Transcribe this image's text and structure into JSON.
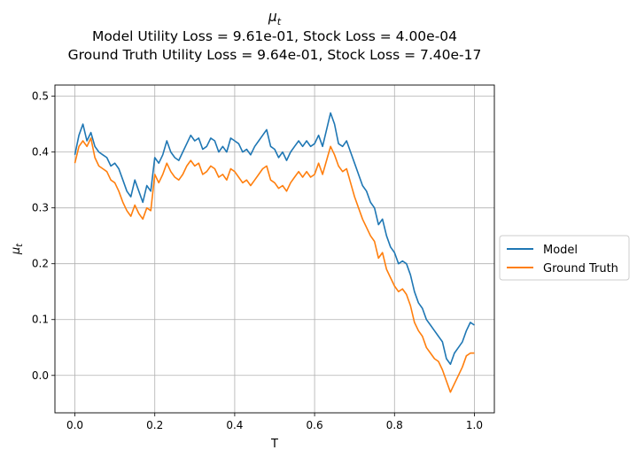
{
  "chart_data": {
    "type": "line",
    "title_symbol_base": "μ",
    "title_symbol_sub": "t",
    "title_lines": [
      "Model Utility Loss = 9.61e-01, Stock Loss = 4.00e-04",
      "Ground Truth Utility Loss = 9.64e-01, Stock Loss = 7.40e-17"
    ],
    "xlabel": "T",
    "ylabel_base": "μ",
    "ylabel_sub": "t",
    "xlim": [
      -0.05,
      1.05
    ],
    "ylim": [
      -0.067,
      0.52
    ],
    "xticks": [
      0.0,
      0.2,
      0.4,
      0.6,
      0.8,
      1.0
    ],
    "xtick_labels": [
      "0.0",
      "0.2",
      "0.4",
      "0.6",
      "0.8",
      "1.0"
    ],
    "yticks": [
      0.0,
      0.1,
      0.2,
      0.3,
      0.4,
      0.5
    ],
    "ytick_labels": [
      "0.0",
      "0.1",
      "0.2",
      "0.3",
      "0.4",
      "0.5"
    ],
    "grid": true,
    "legend_position": "outside-right",
    "series": [
      {
        "name": "Model",
        "color": "#1f77b4",
        "x": [
          0.0,
          0.01,
          0.02,
          0.03,
          0.04,
          0.05,
          0.06,
          0.07,
          0.08,
          0.09,
          0.1,
          0.11,
          0.12,
          0.13,
          0.14,
          0.15,
          0.16,
          0.17,
          0.18,
          0.19,
          0.2,
          0.21,
          0.22,
          0.23,
          0.24,
          0.25,
          0.26,
          0.27,
          0.28,
          0.29,
          0.3,
          0.31,
          0.32,
          0.33,
          0.34,
          0.35,
          0.36,
          0.37,
          0.38,
          0.39,
          0.4,
          0.41,
          0.42,
          0.43,
          0.44,
          0.45,
          0.46,
          0.47,
          0.48,
          0.49,
          0.5,
          0.51,
          0.52,
          0.53,
          0.54,
          0.55,
          0.56,
          0.57,
          0.58,
          0.59,
          0.6,
          0.61,
          0.62,
          0.63,
          0.64,
          0.65,
          0.66,
          0.67,
          0.68,
          0.69,
          0.7,
          0.71,
          0.72,
          0.73,
          0.74,
          0.75,
          0.76,
          0.77,
          0.78,
          0.79,
          0.8,
          0.81,
          0.82,
          0.83,
          0.84,
          0.85,
          0.86,
          0.87,
          0.88,
          0.89,
          0.9,
          0.91,
          0.92,
          0.93,
          0.94,
          0.95,
          0.96,
          0.97,
          0.98,
          0.99,
          1.0
        ],
        "y": [
          0.395,
          0.43,
          0.45,
          0.42,
          0.435,
          0.41,
          0.4,
          0.395,
          0.39,
          0.375,
          0.38,
          0.37,
          0.35,
          0.33,
          0.32,
          0.35,
          0.33,
          0.31,
          0.34,
          0.33,
          0.39,
          0.38,
          0.395,
          0.42,
          0.4,
          0.39,
          0.385,
          0.4,
          0.415,
          0.43,
          0.42,
          0.425,
          0.405,
          0.41,
          0.425,
          0.42,
          0.4,
          0.41,
          0.4,
          0.425,
          0.42,
          0.415,
          0.4,
          0.405,
          0.395,
          0.41,
          0.42,
          0.43,
          0.44,
          0.41,
          0.405,
          0.39,
          0.4,
          0.385,
          0.4,
          0.41,
          0.42,
          0.41,
          0.42,
          0.41,
          0.415,
          0.43,
          0.41,
          0.44,
          0.47,
          0.45,
          0.415,
          0.41,
          0.42,
          0.4,
          0.38,
          0.36,
          0.34,
          0.33,
          0.31,
          0.3,
          0.27,
          0.28,
          0.25,
          0.23,
          0.22,
          0.2,
          0.205,
          0.2,
          0.18,
          0.15,
          0.13,
          0.12,
          0.1,
          0.09,
          0.08,
          0.07,
          0.06,
          0.03,
          0.02,
          0.04,
          0.05,
          0.06,
          0.08,
          0.095,
          0.09
        ]
      },
      {
        "name": "Ground Truth",
        "color": "#ff7f0e",
        "x": [
          0.0,
          0.01,
          0.02,
          0.03,
          0.04,
          0.05,
          0.06,
          0.07,
          0.08,
          0.09,
          0.1,
          0.11,
          0.12,
          0.13,
          0.14,
          0.15,
          0.16,
          0.17,
          0.18,
          0.19,
          0.2,
          0.21,
          0.22,
          0.23,
          0.24,
          0.25,
          0.26,
          0.27,
          0.28,
          0.29,
          0.3,
          0.31,
          0.32,
          0.33,
          0.34,
          0.35,
          0.36,
          0.37,
          0.38,
          0.39,
          0.4,
          0.41,
          0.42,
          0.43,
          0.44,
          0.45,
          0.46,
          0.47,
          0.48,
          0.49,
          0.5,
          0.51,
          0.52,
          0.53,
          0.54,
          0.55,
          0.56,
          0.57,
          0.58,
          0.59,
          0.6,
          0.61,
          0.62,
          0.63,
          0.64,
          0.65,
          0.66,
          0.67,
          0.68,
          0.69,
          0.7,
          0.71,
          0.72,
          0.73,
          0.74,
          0.75,
          0.76,
          0.77,
          0.78,
          0.79,
          0.8,
          0.81,
          0.82,
          0.83,
          0.84,
          0.85,
          0.86,
          0.87,
          0.88,
          0.89,
          0.9,
          0.91,
          0.92,
          0.93,
          0.94,
          0.95,
          0.96,
          0.97,
          0.98,
          0.99,
          1.0
        ],
        "y": [
          0.38,
          0.41,
          0.42,
          0.41,
          0.425,
          0.39,
          0.375,
          0.37,
          0.365,
          0.35,
          0.345,
          0.33,
          0.31,
          0.295,
          0.285,
          0.305,
          0.29,
          0.28,
          0.3,
          0.295,
          0.36,
          0.345,
          0.36,
          0.38,
          0.365,
          0.355,
          0.35,
          0.36,
          0.375,
          0.385,
          0.375,
          0.38,
          0.36,
          0.365,
          0.375,
          0.37,
          0.355,
          0.36,
          0.35,
          0.37,
          0.365,
          0.355,
          0.345,
          0.35,
          0.34,
          0.35,
          0.36,
          0.37,
          0.375,
          0.35,
          0.345,
          0.335,
          0.34,
          0.33,
          0.345,
          0.355,
          0.365,
          0.355,
          0.365,
          0.355,
          0.36,
          0.38,
          0.36,
          0.385,
          0.41,
          0.395,
          0.375,
          0.365,
          0.37,
          0.345,
          0.32,
          0.3,
          0.28,
          0.265,
          0.25,
          0.24,
          0.21,
          0.22,
          0.19,
          0.175,
          0.16,
          0.15,
          0.155,
          0.145,
          0.125,
          0.095,
          0.08,
          0.07,
          0.05,
          0.04,
          0.03,
          0.025,
          0.01,
          -0.01,
          -0.03,
          -0.015,
          0.0,
          0.015,
          0.035,
          0.04,
          0.04
        ]
      }
    ]
  }
}
